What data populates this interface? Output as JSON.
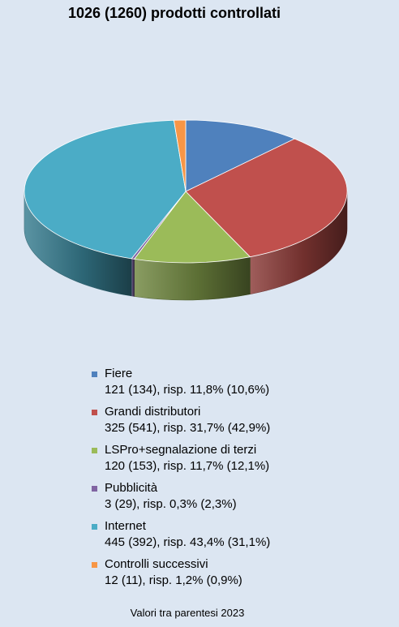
{
  "title": "1026 (1260) prodotti controllati",
  "footnote": "Valori tra parentesi 2023",
  "chart_data": {
    "type": "pie",
    "title": "1026 (1260) prodotti controllati",
    "style": "3d-exploded",
    "legend_position": "bottom",
    "slices": [
      {
        "name": "Fiere",
        "value": 121,
        "value_2023": 134,
        "percent": 11.8,
        "percent_2023": 10.6,
        "color": "#4f81bd",
        "label": "121 (134), risp. 11,8% (10,6%)"
      },
      {
        "name": "Grandi distributori",
        "value": 325,
        "value_2023": 541,
        "percent": 31.7,
        "percent_2023": 42.9,
        "color": "#c0504d",
        "label": "325 (541), risp. 31,7% (42,9%)"
      },
      {
        "name": "LSPro+segnalazione di terzi",
        "value": 120,
        "value_2023": 153,
        "percent": 11.7,
        "percent_2023": 12.1,
        "color": "#9bbb59",
        "label": "120 (153), risp. 11,7% (12,1%)"
      },
      {
        "name": "Pubblicità",
        "value": 3,
        "value_2023": 29,
        "percent": 0.3,
        "percent_2023": 2.3,
        "color": "#8064a2",
        "label": "3 (29), risp. 0,3% (2,3%)"
      },
      {
        "name": "Internet",
        "value": 445,
        "value_2023": 392,
        "percent": 43.4,
        "percent_2023": 31.1,
        "color": "#4bacc6",
        "label": "445 (392), risp. 43,4% (31,1%)"
      },
      {
        "name": "Controlli successivi",
        "value": 12,
        "value_2023": 11,
        "percent": 1.2,
        "percent_2023": 0.9,
        "color": "#f79646",
        "label": "12 (11), risp. 1,2% (0,9%)"
      }
    ]
  }
}
